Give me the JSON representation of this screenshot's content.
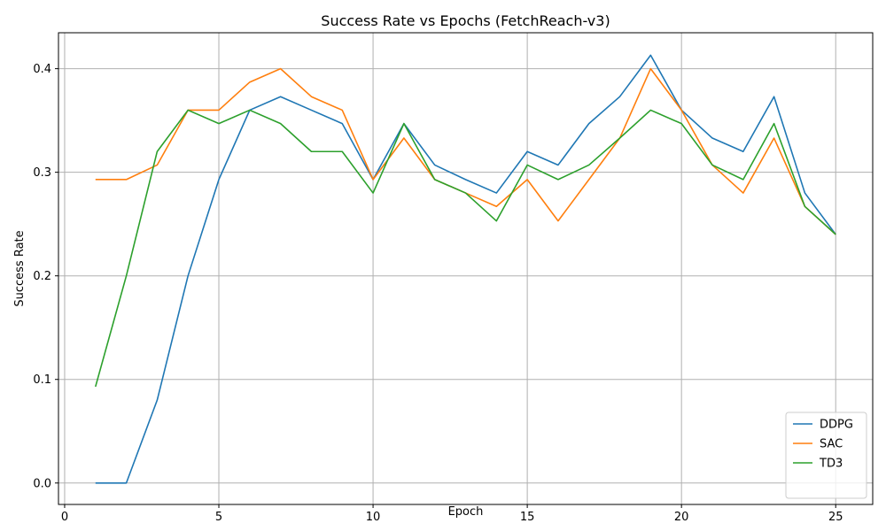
{
  "chart_data": {
    "type": "line",
    "title": "Success Rate vs Epochs (FetchReach-v3)",
    "xlabel": "Epoch",
    "ylabel": "Success Rate",
    "xlim": [
      -0.2,
      26.2
    ],
    "ylim": [
      -0.0207,
      0.4347
    ],
    "xticks": [
      0,
      5,
      10,
      15,
      20,
      25
    ],
    "yticks": [
      0.0,
      0.1,
      0.2,
      0.3,
      0.4
    ],
    "ytick_labels": [
      "0.0",
      "0.1",
      "0.2",
      "0.3",
      "0.4"
    ],
    "grid": true,
    "legend": "bottom-right",
    "x": [
      1,
      2,
      3,
      4,
      5,
      6,
      7,
      8,
      9,
      10,
      11,
      12,
      13,
      14,
      15,
      16,
      17,
      18,
      19,
      20,
      21,
      22,
      23,
      24,
      25
    ],
    "series": [
      {
        "name": "DDPG",
        "color": "#1f77b4",
        "values": [
          0.0,
          0.0,
          0.08,
          0.2,
          0.293,
          0.36,
          0.373,
          0.36,
          0.347,
          0.293,
          0.347,
          0.307,
          0.293,
          0.28,
          0.32,
          0.307,
          0.347,
          0.373,
          0.413,
          0.36,
          0.333,
          0.32,
          0.373,
          0.28,
          0.24
        ]
      },
      {
        "name": "SAC",
        "color": "#ff7f0e",
        "values": [
          0.293,
          0.293,
          0.307,
          0.36,
          0.36,
          0.387,
          0.4,
          0.373,
          0.36,
          0.293,
          0.333,
          0.293,
          0.28,
          0.267,
          0.293,
          0.253,
          0.293,
          0.333,
          0.4,
          0.36,
          0.307,
          0.28,
          0.333,
          0.267,
          0.24
        ]
      },
      {
        "name": "TD3",
        "color": "#2ca02c",
        "values": [
          0.093,
          0.2,
          0.32,
          0.36,
          0.347,
          0.36,
          0.347,
          0.32,
          0.32,
          0.28,
          0.347,
          0.293,
          0.28,
          0.253,
          0.307,
          0.293,
          0.307,
          0.333,
          0.36,
          0.347,
          0.307,
          0.293,
          0.347,
          0.267,
          0.24
        ]
      }
    ]
  }
}
